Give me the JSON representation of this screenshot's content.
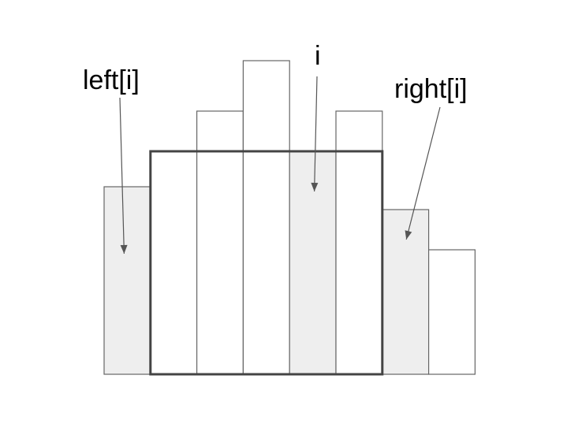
{
  "labels": {
    "left": "left[i]",
    "i": "i",
    "right": "right[i]"
  },
  "histogram": {
    "bars": [
      {
        "height": 238,
        "highlighted": true
      },
      {
        "height": 283,
        "highlighted": false
      },
      {
        "height": 334,
        "highlighted": false
      },
      {
        "height": 398,
        "highlighted": false
      },
      {
        "height": 283,
        "highlighted": true
      },
      {
        "height": 334,
        "highlighted": false
      },
      {
        "height": 209,
        "highlighted": true
      },
      {
        "height": 158,
        "highlighted": false
      }
    ],
    "current_index": 4,
    "left_index": 0,
    "right_index": 6,
    "rectangle": {
      "from_bar": 1,
      "to_bar": 5
    }
  },
  "colors": {
    "highlight_fill": "#eeeeee",
    "normal_fill": "#ffffff",
    "bar_stroke": "#666666",
    "rectangle_stroke": "#444444"
  }
}
